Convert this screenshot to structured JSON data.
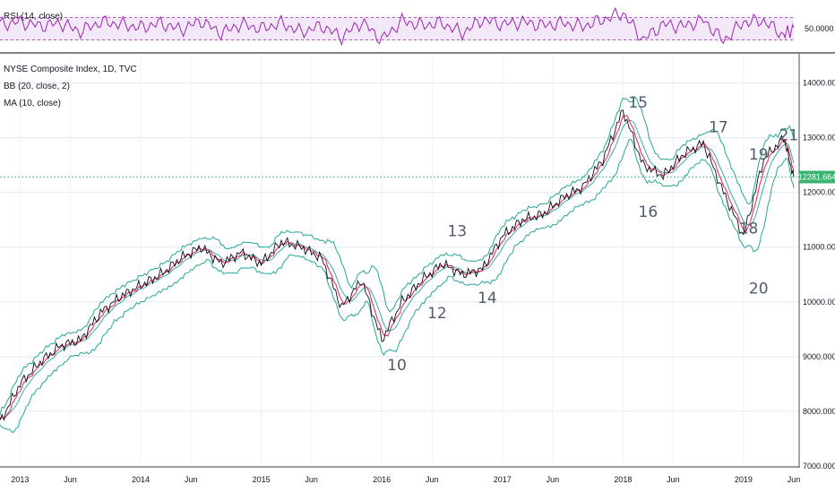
{
  "colors": {
    "rsi": "#9c27b0",
    "rsi_band": "#e6d1f2",
    "bb": "#26a69a",
    "ma": "#e91e63",
    "price": "#0d0d0d",
    "last_tag": "#3cb371"
  },
  "chart_data": [
    {
      "type": "line",
      "title": "RSI (14, close)",
      "ylim": [
        10,
        90
      ],
      "y_ticks": [
        "50.0000"
      ],
      "band": [
        30,
        70
      ],
      "x": [
        "2012-11",
        "2013-01",
        "2013-03",
        "2013-05",
        "2013-07",
        "2013-09",
        "2013-11",
        "2014-01",
        "2014-03",
        "2014-05",
        "2014-07",
        "2014-09",
        "2014-11",
        "2015-01",
        "2015-03",
        "2015-05",
        "2015-07",
        "2015-09",
        "2015-11",
        "2016-01",
        "2016-03",
        "2016-05",
        "2016-07",
        "2016-09",
        "2016-11",
        "2017-01",
        "2017-03",
        "2017-05",
        "2017-07",
        "2017-09",
        "2017-11",
        "2018-01",
        "2018-03",
        "2018-05",
        "2018-07",
        "2018-09",
        "2018-11",
        "2019-01",
        "2019-03",
        "2019-05",
        "2019-06"
      ],
      "series": [
        {
          "values": [
            58,
            62,
            55,
            60,
            45,
            62,
            58,
            52,
            60,
            48,
            64,
            42,
            58,
            50,
            60,
            44,
            55,
            35,
            62,
            30,
            64,
            56,
            60,
            42,
            66,
            58,
            62,
            56,
            60,
            54,
            66,
            78,
            30,
            58,
            54,
            66,
            28,
            62,
            64,
            38,
            52
          ]
        }
      ]
    },
    {
      "type": "line",
      "title": "NYSE Composite Index, 1D, TVC",
      "indicators": [
        "BB (20, close, 2)",
        "MA (10, close)"
      ],
      "ylim": [
        7000,
        14500
      ],
      "y_ticks": [
        "7000.000",
        "8000.000",
        "9000.000",
        "10000.000",
        "11000.000",
        "12000.000",
        "13000.000",
        "14000.000"
      ],
      "x_ticks": [
        "2013",
        "Jun",
        "2014",
        "Jun",
        "2015",
        "Jun",
        "2016",
        "Jun",
        "2017",
        "Jun",
        "2018",
        "Jun",
        "2019",
        "Jun"
      ],
      "last_value": "12281.664",
      "x": [
        "2012-11",
        "2013-01",
        "2013-03",
        "2013-05",
        "2013-07",
        "2013-09",
        "2013-11",
        "2014-01",
        "2014-03",
        "2014-05",
        "2014-07",
        "2014-09",
        "2014-11",
        "2015-01",
        "2015-03",
        "2015-05",
        "2015-07",
        "2015-09",
        "2015-11",
        "2016-01",
        "2016-03",
        "2016-05",
        "2016-07",
        "2016-09",
        "2016-11",
        "2017-01",
        "2017-03",
        "2017-05",
        "2017-07",
        "2017-09",
        "2017-11",
        "2018-01",
        "2018-03",
        "2018-05",
        "2018-07",
        "2018-09",
        "2018-11",
        "2019-01",
        "2019-03",
        "2019-05",
        "2019-06"
      ],
      "series": [
        {
          "values": [
            7800,
            8500,
            8900,
            9200,
            9300,
            9800,
            10100,
            10300,
            10500,
            10800,
            11000,
            10700,
            10900,
            10700,
            11100,
            11000,
            10800,
            9900,
            10400,
            9300,
            10000,
            10400,
            10700,
            10500,
            10600,
            11200,
            11500,
            11600,
            11900,
            12100,
            12600,
            13500,
            12500,
            12300,
            12700,
            12900,
            12000,
            11200,
            12600,
            13000,
            12280
          ]
        }
      ],
      "annotations": [
        {
          "text": "10",
          "x": "2016-01",
          "y": 8750
        },
        {
          "text": "12",
          "x": "2016-05",
          "y": 9700
        },
        {
          "text": "13",
          "x": "2016-07",
          "y": 11200
        },
        {
          "text": "14",
          "x": "2016-10",
          "y": 9980
        },
        {
          "text": "15",
          "x": "2018-01",
          "y": 13550
        },
        {
          "text": "16",
          "x": "2018-02",
          "y": 11550
        },
        {
          "text": "17",
          "x": "2018-09",
          "y": 13100
        },
        {
          "text": "18",
          "x": "2018-12",
          "y": 11250
        },
        {
          "text": "19",
          "x": "2019-01",
          "y": 12600
        },
        {
          "text": "20",
          "x": "2019-01",
          "y": 10150
        },
        {
          "text": "21",
          "x": "2019-04",
          "y": 12950
        }
      ]
    }
  ]
}
